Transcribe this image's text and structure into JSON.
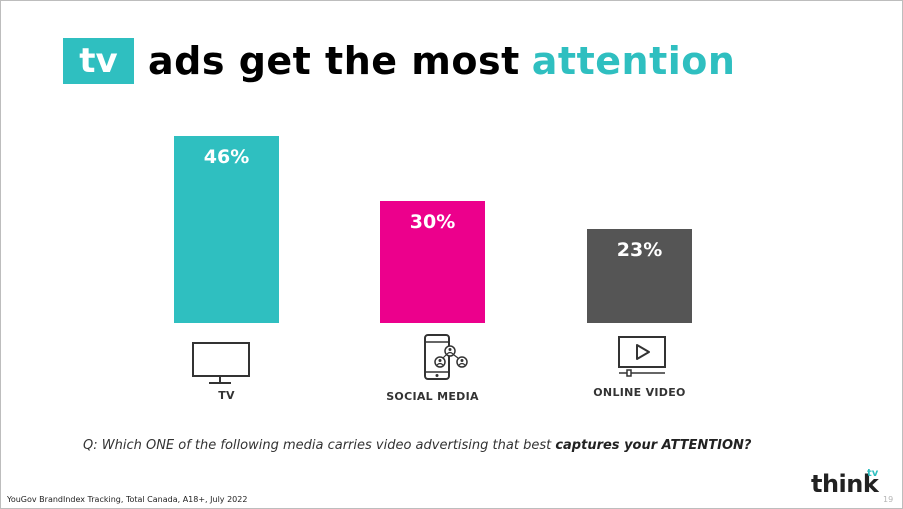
{
  "title": {
    "badge": "tv",
    "main": "ads get the most",
    "accent": "attention"
  },
  "chart_data": {
    "type": "bar",
    "categories": [
      "TV",
      "SOCIAL MEDIA",
      "ONLINE VIDEO"
    ],
    "values": [
      46,
      30,
      23
    ],
    "value_labels": [
      "46%",
      "30%",
      "23%"
    ],
    "colors": [
      "#2fbfc0",
      "#ec008c",
      "#555555"
    ],
    "icons": [
      "tv-icon",
      "smartphone-social-icon",
      "video-player-icon"
    ],
    "ylim": [
      0,
      46
    ]
  },
  "question": {
    "prefix": "Q: Which ONE of the following media carries video advertising that best ",
    "emphasis": "captures your ATTENTION?"
  },
  "footnote": "YouGov BrandIndex Tracking, Total Canada, A18+, July 2022",
  "page_number": "19",
  "logo": {
    "word": "think",
    "superscript": "tv"
  }
}
